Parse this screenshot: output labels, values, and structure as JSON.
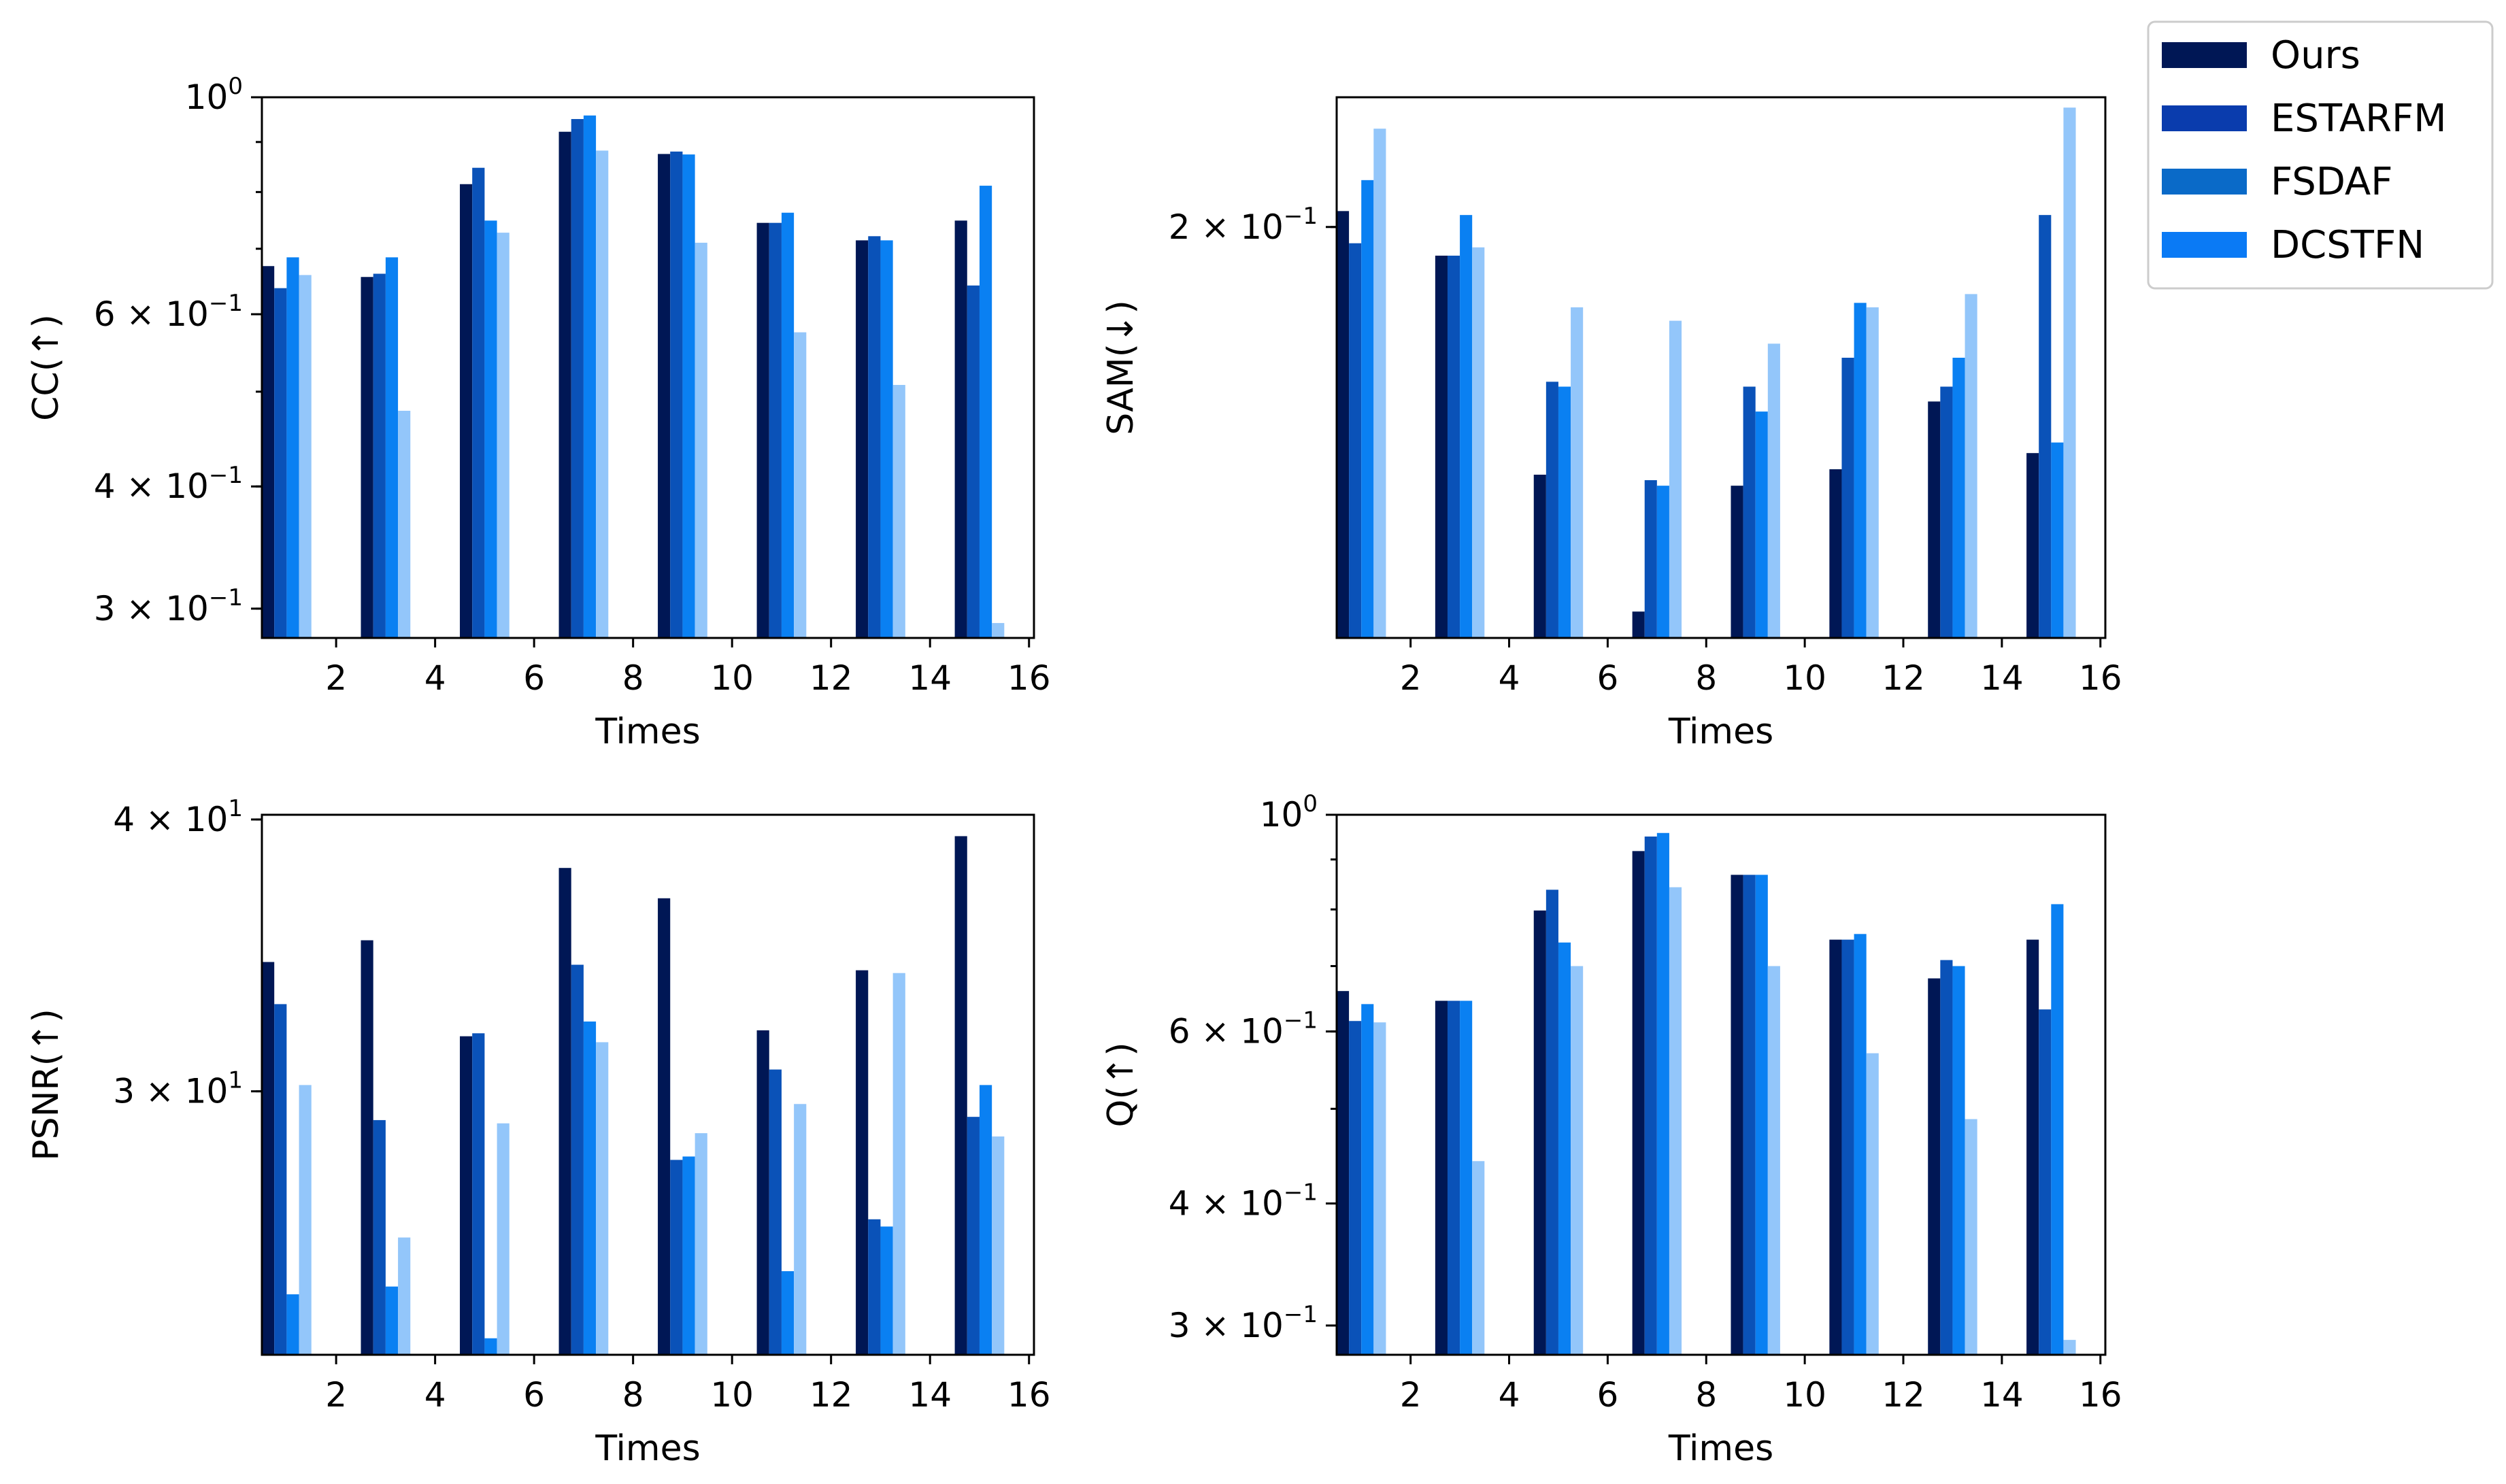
{
  "chart_data": [
    {
      "id": "cc",
      "type": "bar",
      "scale": "log",
      "ylabel": "CC(↑)",
      "xlabel": "Times",
      "ylim": [
        0.28,
        1.0
      ],
      "yticks": [
        {
          "value": 1.0,
          "base": "10",
          "exp": "0",
          "coef": ""
        },
        {
          "value": 0.6,
          "base": "10",
          "exp": "−1",
          "coef": "6 × "
        },
        {
          "value": 0.4,
          "base": "10",
          "exp": "−1",
          "coef": "4 × "
        },
        {
          "value": 0.3,
          "base": "10",
          "exp": "−1",
          "coef": "3 × "
        }
      ],
      "xticks": [
        "2",
        "4",
        "6",
        "8",
        "10",
        "12",
        "14",
        "16"
      ],
      "groups": [
        1,
        3,
        5,
        7,
        9,
        11,
        13,
        15
      ],
      "series": [
        {
          "name": "Ours",
          "values": [
            0.672,
            0.655,
            0.815,
            0.922,
            0.875,
            0.744,
            0.714,
            0.748
          ]
        },
        {
          "name": "ESTARFM",
          "values": [
            0.638,
            0.66,
            0.847,
            0.95,
            0.88,
            0.744,
            0.721,
            0.642
          ]
        },
        {
          "name": "FSDAF",
          "values": [
            0.686,
            0.686,
            0.748,
            0.958,
            0.874,
            0.762,
            0.714,
            0.812
          ]
        },
        {
          "name": "DCSTFN",
          "values": [
            0.658,
            0.478,
            0.727,
            0.882,
            0.71,
            0.575,
            0.508,
            0.29
          ]
        }
      ]
    },
    {
      "id": "sam",
      "type": "bar",
      "scale": "log",
      "ylabel": "SAM(↓)",
      "xlabel": "Times",
      "ylim": [
        0.12,
        0.235
      ],
      "yticks": [
        {
          "value": 0.2,
          "base": "10",
          "exp": "−1",
          "coef": "2 × "
        }
      ],
      "xticks": [
        "2",
        "4",
        "6",
        "8",
        "10",
        "12",
        "14",
        "16"
      ],
      "groups": [
        1,
        3,
        5,
        7,
        9,
        11,
        13,
        15
      ],
      "series": [
        {
          "name": "Ours",
          "values": [
            0.204,
            0.193,
            0.147,
            0.124,
            0.145,
            0.148,
            0.161,
            0.151
          ]
        },
        {
          "name": "ESTARFM",
          "values": [
            0.196,
            0.193,
            0.165,
            0.146,
            0.164,
            0.17,
            0.164,
            0.203
          ]
        },
        {
          "name": "FSDAF",
          "values": [
            0.212,
            0.203,
            0.164,
            0.145,
            0.159,
            0.182,
            0.17,
            0.153
          ]
        },
        {
          "name": "DCSTFN",
          "values": [
            0.226,
            0.195,
            0.181,
            0.178,
            0.173,
            0.181,
            0.184,
            0.232
          ]
        }
      ]
    },
    {
      "id": "psnr",
      "type": "bar",
      "scale": "log",
      "ylabel": "PSNR(↑)",
      "xlabel": "Times",
      "ylim": [
        22.7,
        40.2
      ],
      "yticks": [
        {
          "value": 40,
          "base": "10",
          "exp": "1",
          "coef": "4 × "
        },
        {
          "value": 30,
          "base": "10",
          "exp": "1",
          "coef": "3 × "
        }
      ],
      "xticks": [
        "2",
        "4",
        "6",
        "8",
        "10",
        "12",
        "14",
        "16"
      ],
      "groups": [
        1,
        3,
        5,
        7,
        9,
        11,
        13,
        15
      ],
      "series": [
        {
          "name": "Ours",
          "values": [
            34.4,
            35.2,
            31.8,
            38.0,
            36.8,
            32.0,
            34.1,
            39.3
          ]
        },
        {
          "name": "ESTARFM",
          "values": [
            32.9,
            29.1,
            31.9,
            34.3,
            27.9,
            30.7,
            26.2,
            29.2
          ]
        },
        {
          "name": "FSDAF",
          "values": [
            24.2,
            24.4,
            23.1,
            32.3,
            28.0,
            24.8,
            26.0,
            30.2
          ]
        },
        {
          "name": "DCSTFN",
          "values": [
            30.2,
            25.7,
            29.0,
            31.6,
            28.7,
            29.6,
            34.0,
            28.6
          ]
        }
      ]
    },
    {
      "id": "q",
      "type": "bar",
      "scale": "log",
      "ylabel": "Q(↑)",
      "xlabel": "Times",
      "ylim": [
        0.28,
        1.0
      ],
      "yticks": [
        {
          "value": 1.0,
          "base": "10",
          "exp": "0",
          "coef": ""
        },
        {
          "value": 0.6,
          "base": "10",
          "exp": "−1",
          "coef": "6 × "
        },
        {
          "value": 0.4,
          "base": "10",
          "exp": "−1",
          "coef": "4 × "
        },
        {
          "value": 0.3,
          "base": "10",
          "exp": "−1",
          "coef": "3 × "
        }
      ],
      "xticks": [
        "2",
        "4",
        "6",
        "8",
        "10",
        "12",
        "14",
        "16"
      ],
      "groups": [
        1,
        3,
        5,
        7,
        9,
        11,
        13,
        15
      ],
      "series": [
        {
          "name": "Ours",
          "values": [
            0.66,
            0.645,
            0.798,
            0.918,
            0.868,
            0.745,
            0.68,
            0.745
          ]
        },
        {
          "name": "ESTARFM",
          "values": [
            0.615,
            0.645,
            0.838,
            0.95,
            0.868,
            0.745,
            0.71,
            0.632
          ]
        },
        {
          "name": "FSDAF",
          "values": [
            0.64,
            0.645,
            0.74,
            0.958,
            0.868,
            0.755,
            0.7,
            0.81
          ]
        },
        {
          "name": "DCSTFN",
          "values": [
            0.613,
            0.442,
            0.7,
            0.843,
            0.7,
            0.57,
            0.488,
            0.29
          ]
        }
      ]
    }
  ],
  "legend": {
    "entries": [
      {
        "label": "Ours",
        "color": "#001755"
      },
      {
        "label": "ESTARFM",
        "color": "#0a3cad"
      },
      {
        "label": "FSDAF",
        "color": "#0a6ac8"
      },
      {
        "label": "DCSTFN",
        "color": "#0a7af5"
      }
    ]
  },
  "series_colors": [
    "#001755",
    "#0a3cad",
    "#0a6ac8",
    "#0a80f2",
    "#93c6fa"
  ]
}
